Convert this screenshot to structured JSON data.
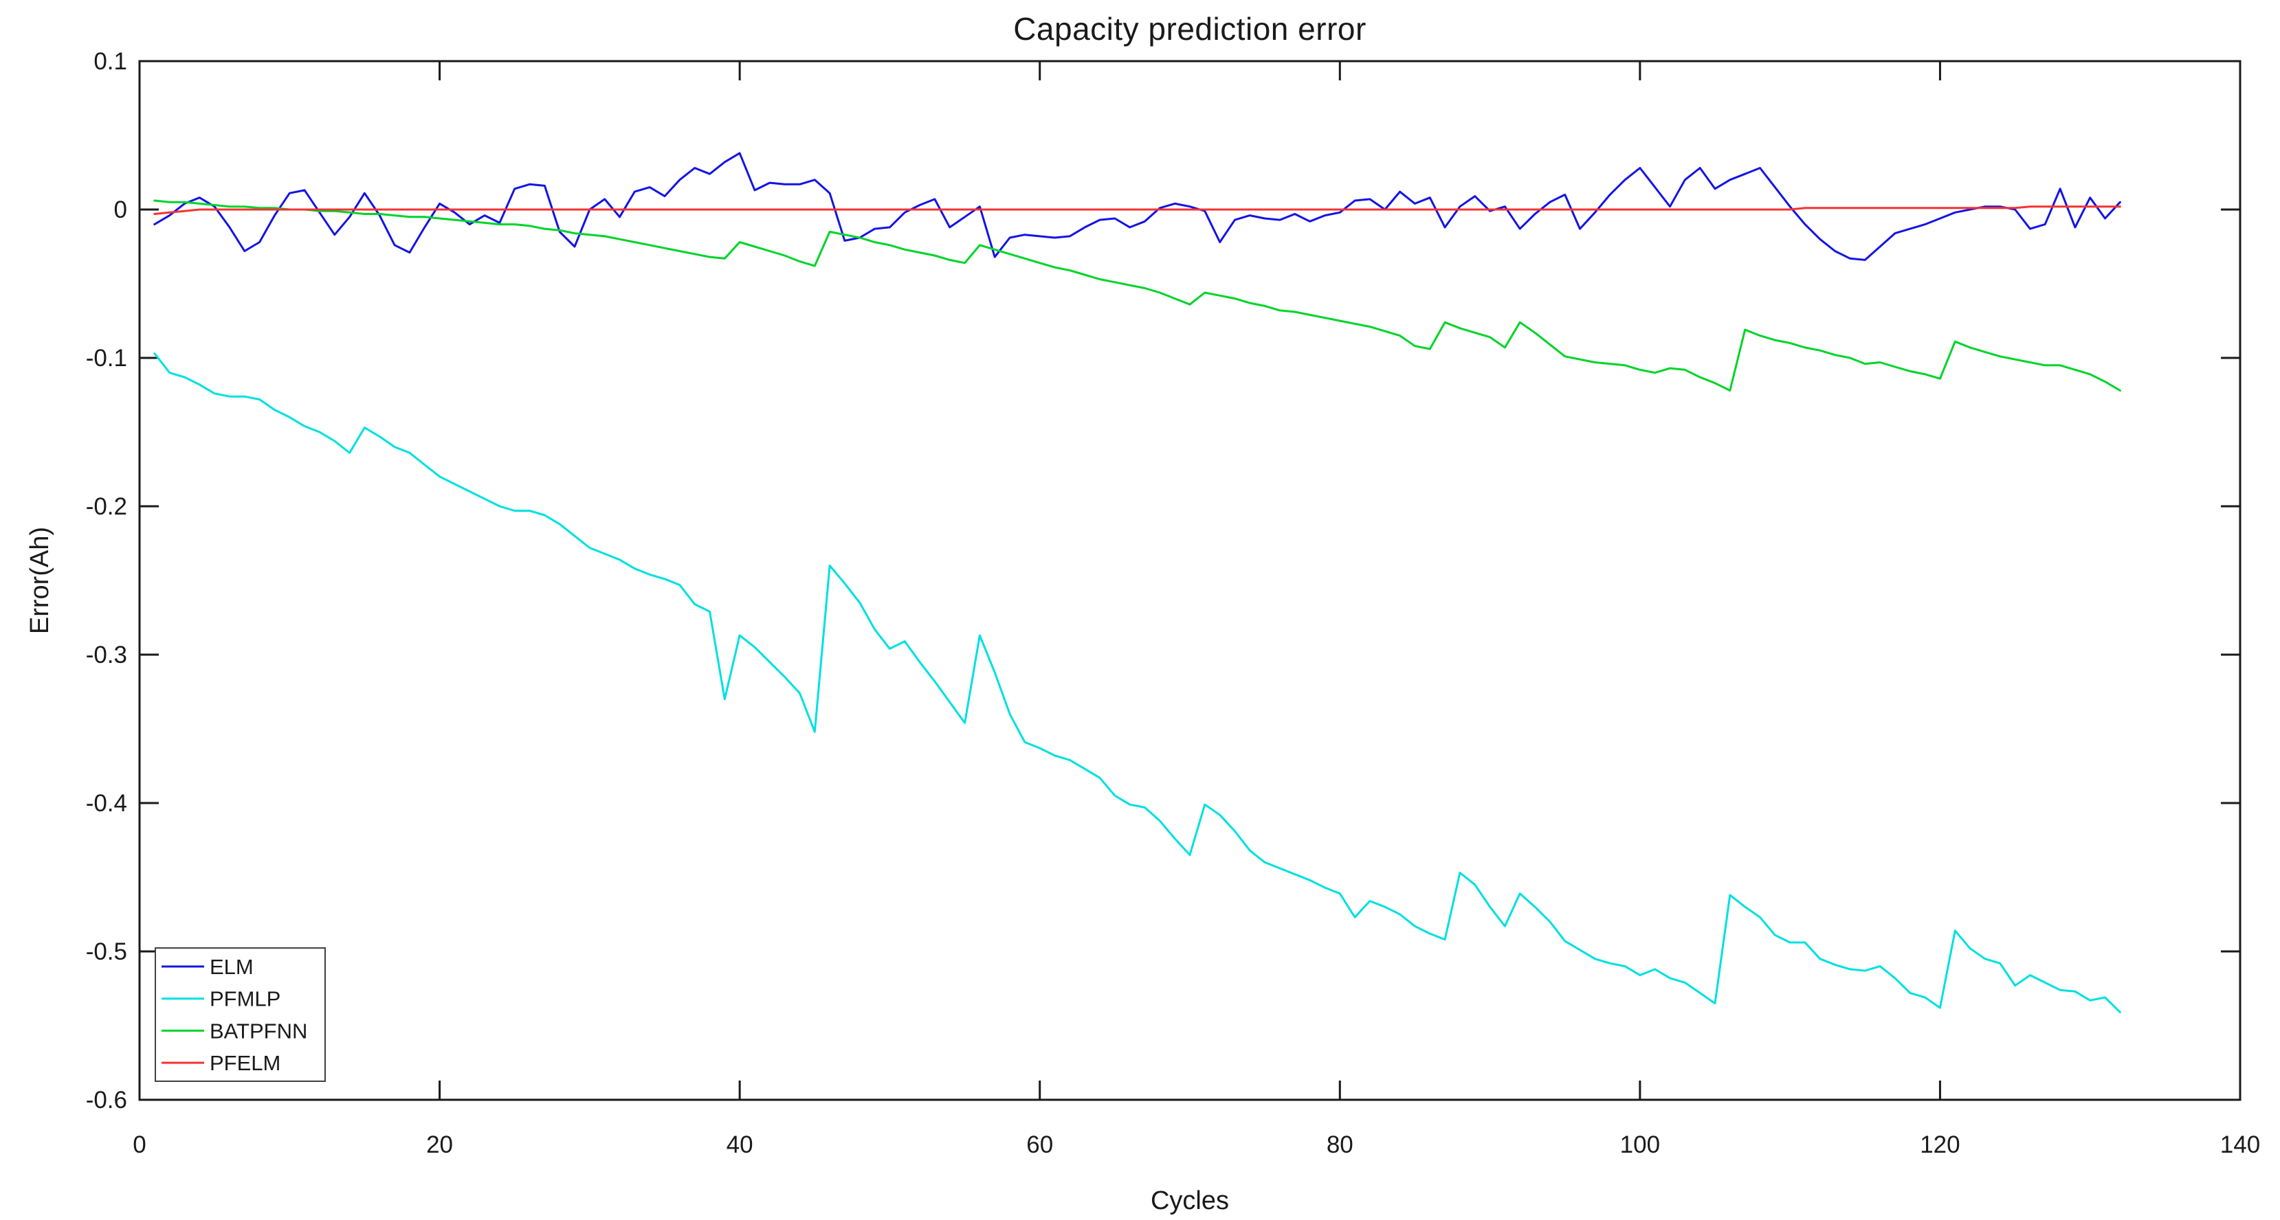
{
  "figure": {
    "title": "Capacity prediction error",
    "x_axis_label": "Cycles",
    "y_axis_label": "Error(Ah)"
  },
  "colors": {
    "background": "#ffffff",
    "axis": "#1a1a1a",
    "elm": "#1414e6",
    "pfmlp": "#00e0e0",
    "batpfnn": "#00d42a",
    "pfelm": "#f53232"
  },
  "legend": {
    "position": "lower-left",
    "entries": [
      {
        "label": "ELM",
        "color": "#1414e6"
      },
      {
        "label": "PFMLP",
        "color": "#00e0e0"
      },
      {
        "label": "BATPFNN",
        "color": "#00d42a"
      },
      {
        "label": "PFELM",
        "color": "#f53232"
      }
    ]
  },
  "chart_data": {
    "type": "line",
    "title": "Capacity prediction error",
    "xlabel": "Cycles",
    "ylabel": "Error(Ah)",
    "xlim": [
      0,
      140
    ],
    "ylim": [
      -0.6,
      0.1
    ],
    "xticks": [
      0,
      20,
      40,
      60,
      80,
      100,
      120,
      140
    ],
    "xtick_labels": [
      "0",
      "20",
      "40",
      "60",
      "80",
      "100",
      "120",
      "140"
    ],
    "yticks": [
      0.1,
      0,
      -0.1,
      -0.2,
      -0.3,
      -0.4,
      -0.5,
      -0.6
    ],
    "ytick_labels": [
      "0.1",
      "0",
      "-0.1",
      "-0.2",
      "-0.3",
      "-0.4",
      "-0.5",
      "-0.6"
    ],
    "grid": false,
    "legend_position": "lower left",
    "x": [
      1,
      2,
      3,
      4,
      5,
      6,
      7,
      8,
      9,
      10,
      11,
      12,
      13,
      14,
      15,
      16,
      17,
      18,
      19,
      20,
      21,
      22,
      23,
      24,
      25,
      26,
      27,
      28,
      29,
      30,
      31,
      32,
      33,
      34,
      35,
      36,
      37,
      38,
      39,
      40,
      41,
      42,
      43,
      44,
      45,
      46,
      47,
      48,
      49,
      50,
      51,
      52,
      53,
      54,
      55,
      56,
      57,
      58,
      59,
      60,
      61,
      62,
      63,
      64,
      65,
      66,
      67,
      68,
      69,
      70,
      71,
      72,
      73,
      74,
      75,
      76,
      77,
      78,
      79,
      80,
      81,
      82,
      83,
      84,
      85,
      86,
      87,
      88,
      89,
      90,
      91,
      92,
      93,
      94,
      95,
      96,
      97,
      98,
      99,
      100,
      101,
      102,
      103,
      104,
      105,
      106,
      107,
      108,
      109,
      110,
      111,
      112,
      113,
      114,
      115,
      116,
      117,
      118,
      119,
      120,
      121,
      122,
      123,
      124,
      125,
      126,
      127,
      128,
      129,
      130,
      131,
      132
    ],
    "series": [
      {
        "name": "ELM",
        "color": "#1414e6",
        "values": [
          -0.01,
          -0.004,
          0.004,
          0.008,
          0.002,
          -0.012,
          -0.028,
          -0.022,
          -0.004,
          0.011,
          0.013,
          -0.002,
          -0.017,
          -0.005,
          0.011,
          -0.004,
          -0.024,
          -0.029,
          -0.012,
          0.004,
          -0.002,
          -0.01,
          -0.004,
          -0.009,
          0.014,
          0.017,
          0.016,
          -0.015,
          -0.025,
          0.0,
          0.007,
          -0.005,
          0.012,
          0.015,
          0.009,
          0.02,
          0.028,
          0.024,
          0.032,
          0.038,
          0.013,
          0.018,
          0.017,
          0.017,
          0.02,
          0.011,
          -0.021,
          -0.019,
          -0.013,
          -0.012,
          -0.002,
          0.003,
          0.007,
          -0.012,
          -0.005,
          0.002,
          -0.032,
          -0.019,
          -0.017,
          -0.018,
          -0.019,
          -0.018,
          -0.012,
          -0.007,
          -0.006,
          -0.012,
          -0.008,
          0.001,
          0.004,
          0.002,
          -0.001,
          -0.022,
          -0.007,
          -0.004,
          -0.006,
          -0.007,
          -0.003,
          -0.008,
          -0.004,
          -0.002,
          0.006,
          0.007,
          0.0,
          0.012,
          0.004,
          0.008,
          -0.012,
          0.002,
          0.009,
          -0.001,
          0.002,
          -0.013,
          -0.003,
          0.005,
          0.01,
          -0.013,
          -0.002,
          0.01,
          0.02,
          0.028,
          0.015,
          0.002,
          0.02,
          0.028,
          0.014,
          0.02,
          0.024,
          0.028,
          0.015,
          0.002,
          -0.01,
          -0.02,
          -0.028,
          -0.033,
          -0.034,
          -0.025,
          -0.016,
          -0.013,
          -0.01,
          -0.006,
          -0.002,
          0.0,
          0.002,
          0.002,
          0.0,
          -0.013,
          -0.01,
          0.014,
          -0.012,
          0.008,
          -0.006,
          0.005
        ]
      },
      {
        "name": "PFMLP",
        "color": "#00e0e0",
        "values": [
          -0.097,
          -0.11,
          -0.113,
          -0.118,
          -0.124,
          -0.126,
          -0.126,
          -0.128,
          -0.135,
          -0.14,
          -0.146,
          -0.15,
          -0.156,
          -0.164,
          -0.147,
          -0.153,
          -0.16,
          -0.164,
          -0.172,
          -0.18,
          -0.185,
          -0.19,
          -0.195,
          -0.2,
          -0.203,
          -0.203,
          -0.206,
          -0.212,
          -0.22,
          -0.228,
          -0.232,
          -0.236,
          -0.242,
          -0.246,
          -0.249,
          -0.253,
          -0.266,
          -0.271,
          -0.33,
          -0.287,
          -0.295,
          -0.305,
          -0.315,
          -0.326,
          -0.352,
          -0.24,
          -0.252,
          -0.265,
          -0.283,
          -0.296,
          -0.291,
          -0.305,
          -0.318,
          -0.332,
          -0.346,
          -0.287,
          -0.312,
          -0.34,
          -0.359,
          -0.363,
          -0.368,
          -0.371,
          -0.377,
          -0.383,
          -0.395,
          -0.401,
          -0.403,
          -0.412,
          -0.424,
          -0.435,
          -0.401,
          -0.408,
          -0.419,
          -0.432,
          -0.44,
          -0.444,
          -0.448,
          -0.452,
          -0.457,
          -0.461,
          -0.477,
          -0.466,
          -0.47,
          -0.475,
          -0.483,
          -0.488,
          -0.492,
          -0.447,
          -0.455,
          -0.47,
          -0.483,
          -0.461,
          -0.47,
          -0.48,
          -0.493,
          -0.499,
          -0.505,
          -0.508,
          -0.51,
          -0.516,
          -0.512,
          -0.518,
          -0.521,
          -0.528,
          -0.535,
          -0.462,
          -0.47,
          -0.477,
          -0.489,
          -0.494,
          -0.494,
          -0.505,
          -0.509,
          -0.512,
          -0.513,
          -0.51,
          -0.518,
          -0.528,
          -0.531,
          -0.538,
          -0.486,
          -0.498,
          -0.505,
          -0.508,
          -0.523,
          -0.516,
          -0.521,
          -0.526,
          -0.527,
          -0.533,
          -0.531,
          -0.541
        ]
      },
      {
        "name": "BATPFNN",
        "color": "#00d42a",
        "values": [
          0.006,
          0.005,
          0.005,
          0.004,
          0.003,
          0.002,
          0.002,
          0.001,
          0.001,
          0.0,
          0.0,
          -0.001,
          -0.001,
          -0.002,
          -0.003,
          -0.003,
          -0.004,
          -0.005,
          -0.005,
          -0.006,
          -0.007,
          -0.008,
          -0.009,
          -0.01,
          -0.01,
          -0.011,
          -0.013,
          -0.014,
          -0.016,
          -0.017,
          -0.018,
          -0.02,
          -0.022,
          -0.024,
          -0.026,
          -0.028,
          -0.03,
          -0.032,
          -0.033,
          -0.022,
          -0.025,
          -0.028,
          -0.031,
          -0.035,
          -0.038,
          -0.015,
          -0.017,
          -0.019,
          -0.022,
          -0.024,
          -0.027,
          -0.029,
          -0.031,
          -0.034,
          -0.036,
          -0.024,
          -0.027,
          -0.03,
          -0.033,
          -0.036,
          -0.039,
          -0.041,
          -0.044,
          -0.047,
          -0.049,
          -0.051,
          -0.053,
          -0.056,
          -0.06,
          -0.064,
          -0.056,
          -0.058,
          -0.06,
          -0.063,
          -0.065,
          -0.068,
          -0.069,
          -0.071,
          -0.073,
          -0.075,
          -0.077,
          -0.079,
          -0.082,
          -0.085,
          -0.092,
          -0.094,
          -0.076,
          -0.08,
          -0.083,
          -0.086,
          -0.093,
          -0.076,
          -0.083,
          -0.091,
          -0.099,
          -0.101,
          -0.103,
          -0.104,
          -0.105,
          -0.108,
          -0.11,
          -0.107,
          -0.108,
          -0.113,
          -0.117,
          -0.122,
          -0.081,
          -0.085,
          -0.088,
          -0.09,
          -0.093,
          -0.095,
          -0.098,
          -0.1,
          -0.104,
          -0.103,
          -0.106,
          -0.109,
          -0.111,
          -0.114,
          -0.089,
          -0.093,
          -0.096,
          -0.099,
          -0.101,
          -0.103,
          -0.105,
          -0.105,
          -0.108,
          -0.111,
          -0.116,
          -0.122
        ]
      },
      {
        "name": "PFELM",
        "color": "#f53232",
        "values": [
          -0.003,
          -0.002,
          -0.001,
          0,
          0,
          0,
          0,
          0,
          0,
          0,
          0,
          0,
          0,
          0,
          0,
          0,
          0,
          0,
          0,
          0,
          0,
          0,
          0,
          0,
          0,
          0,
          0,
          0,
          0,
          0,
          0,
          0,
          0,
          0,
          0,
          0,
          0,
          0,
          0,
          0,
          0,
          0,
          0,
          0,
          0,
          0,
          0,
          0,
          0,
          0,
          0,
          0,
          0,
          0,
          0,
          0,
          0,
          0,
          0,
          0,
          0,
          0,
          0,
          0,
          0,
          0,
          0,
          0,
          0,
          0,
          0,
          0,
          0,
          0,
          0,
          0,
          0,
          0,
          0,
          0,
          0,
          0,
          0,
          0,
          0,
          0,
          0,
          0,
          0,
          0,
          0,
          0,
          0,
          0,
          0,
          0,
          0,
          0,
          0,
          0,
          0,
          0,
          0,
          0,
          0,
          0,
          0,
          0,
          0,
          0,
          0.001,
          0.001,
          0.001,
          0.001,
          0.001,
          0.001,
          0.001,
          0.001,
          0.001,
          0.001,
          0.001,
          0.001,
          0.001,
          0.001,
          0.001,
          0.002,
          0.002,
          0.002,
          0.002,
          0.002,
          0.002,
          0.002
        ]
      }
    ]
  }
}
